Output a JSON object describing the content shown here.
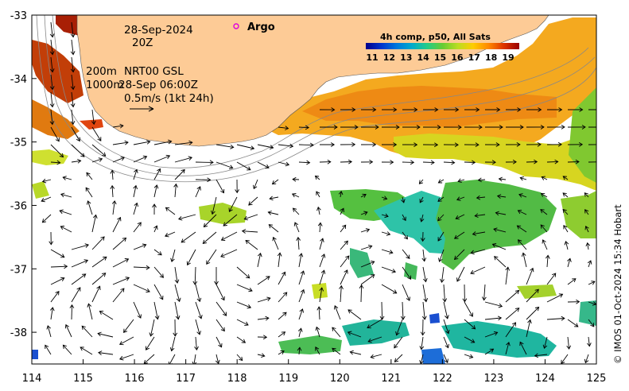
{
  "map": {
    "date_line1": "28-Sep-2024",
    "date_line2": "20Z",
    "depth_label_1": "200m",
    "depth_label_2": "1000m",
    "product_label": "NRT00 GSL",
    "product_time": "28-Sep 06:00Z",
    "scale_label": "0.5m/s (1kt 24h)",
    "argo_label": "Argo",
    "colorbar": {
      "title": "4h comp, p50, All Sats",
      "ticks": [
        "11",
        "12",
        "13",
        "14",
        "15",
        "16",
        "17",
        "18",
        "19"
      ],
      "colors": [
        "#00008b",
        "#0033cc",
        "#0077dd",
        "#00aacc",
        "#22cc88",
        "#66cc33",
        "#bbdd22",
        "#ffcc00",
        "#ff8800",
        "#dd3300",
        "#990000"
      ]
    },
    "credit": "© IMOS 01-Oct-2024 15:34 Hobart",
    "x_ticks": [
      "114",
      "115",
      "116",
      "117",
      "118",
      "119",
      "120",
      "121",
      "122",
      "123",
      "124",
      "125"
    ],
    "y_ticks": [
      "-33",
      "-34",
      "-35",
      "-36",
      "-37",
      "-38"
    ],
    "land_color": "#fdcb96",
    "bounds": {
      "lon_min": 114,
      "lon_max": 125,
      "lat_min": -38.5,
      "lat_max": -33
    }
  }
}
